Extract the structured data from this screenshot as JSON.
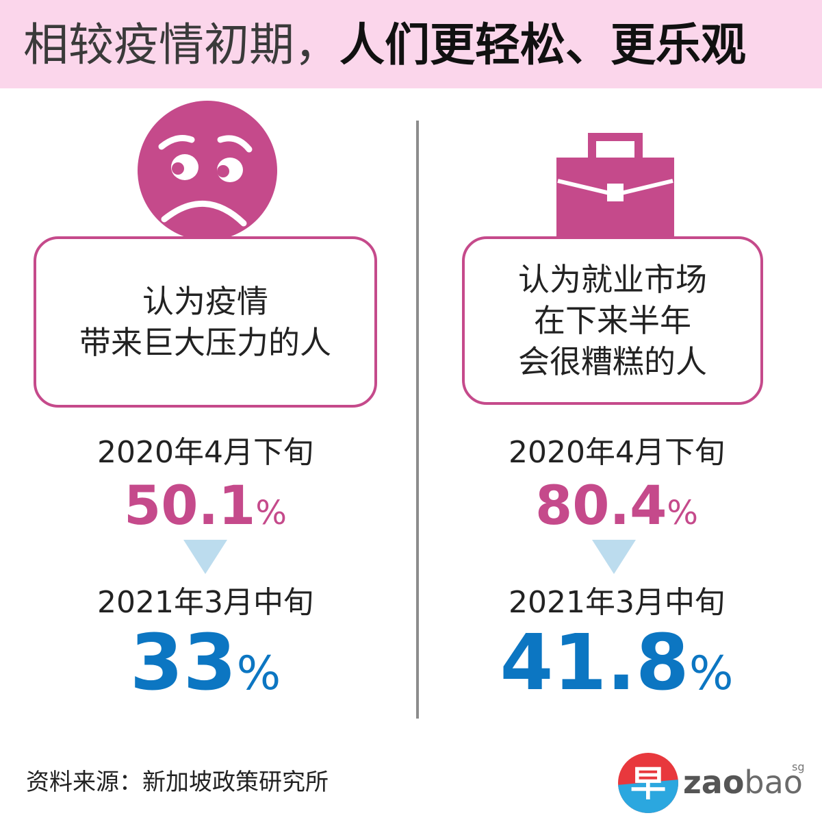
{
  "title": {
    "light": "相较疫情初期，",
    "bold": "人们更轻松、更乐观"
  },
  "panels": [
    {
      "icon": "worried-face-icon",
      "label": "认为疫情\n带来巨大压力的人",
      "before_date": "2020年4月下旬",
      "before_value": "50.1",
      "after_date": "2021年3月中旬",
      "after_value": "33",
      "unit": "%"
    },
    {
      "icon": "briefcase-icon",
      "label": "认为就业市场\n在下来半年\n会很糟糕的人",
      "before_date": "2020年4月下旬",
      "before_value": "80.4",
      "after_date": "2021年3月中旬",
      "after_value": "41.8",
      "unit": "%"
    }
  ],
  "source": "资料来源：新加坡政策研究所",
  "logo": {
    "glyph": "早",
    "word_bold": "zao",
    "word_light": "bao",
    "superscript": "sg"
  },
  "colors": {
    "header_bg": "#fbd6eb",
    "accent_magenta": "#c54a8b",
    "accent_blue": "#0c76c2",
    "arrow": "#bcdcee"
  }
}
